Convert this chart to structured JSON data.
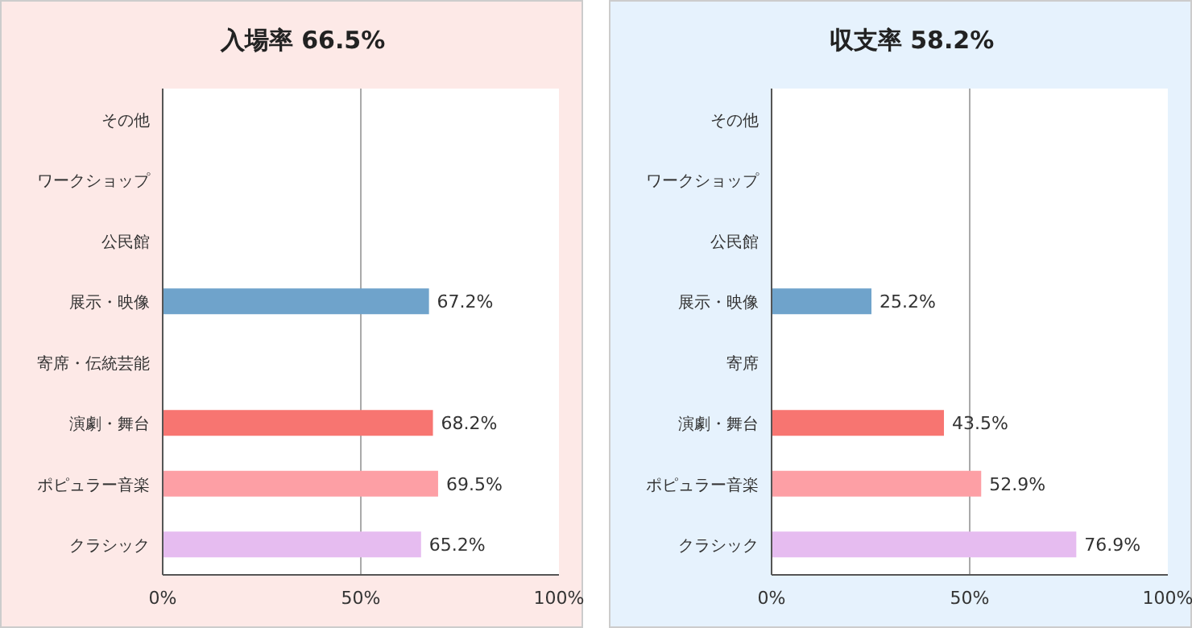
{
  "chart_data": [
    {
      "type": "bar",
      "orientation": "horizontal",
      "title": "入場率 66.5%",
      "categories": [
        "その他",
        "ワークショップ",
        "公民館",
        "展示・映像",
        "寄席・伝統芸能",
        "演劇・舞台",
        "ポピュラー音楽",
        "クラシック"
      ],
      "values": [
        null,
        null,
        null,
        67.2,
        null,
        68.2,
        69.5,
        65.2
      ],
      "value_labels": [
        null,
        null,
        null,
        "67.2%",
        null,
        "68.2%",
        "69.5%",
        "65.2%"
      ],
      "colors": [
        null,
        null,
        null,
        "#6fa3cb",
        null,
        "#f77571",
        "#fd9fa5",
        "#e6bcf0"
      ],
      "xlim": [
        0,
        100
      ],
      "xticks": [
        {
          "value": 0,
          "label": "0%"
        },
        {
          "value": 50,
          "label": "50%"
        },
        {
          "value": 100,
          "label": "100%"
        }
      ],
      "grid": "x"
    },
    {
      "type": "bar",
      "orientation": "horizontal",
      "title": "収支率 58.2%",
      "categories": [
        "その他",
        "ワークショップ",
        "公民館",
        "展示・映像",
        "寄席",
        "演劇・舞台",
        "ポピュラー音楽",
        "クラシック"
      ],
      "values": [
        null,
        null,
        null,
        25.2,
        null,
        43.5,
        52.9,
        76.9
      ],
      "value_labels": [
        null,
        null,
        null,
        "25.2%",
        null,
        "43.5%",
        "52.9%",
        "76.9%"
      ],
      "colors": [
        null,
        null,
        null,
        "#6fa3cb",
        null,
        "#f77571",
        "#fd9fa5",
        "#e6bcf0"
      ],
      "xlim": [
        0,
        100
      ],
      "xticks": [
        {
          "value": 0,
          "label": "0%"
        },
        {
          "value": 50,
          "label": "50%"
        },
        {
          "value": 100,
          "label": "100%"
        }
      ],
      "grid": "x"
    }
  ]
}
